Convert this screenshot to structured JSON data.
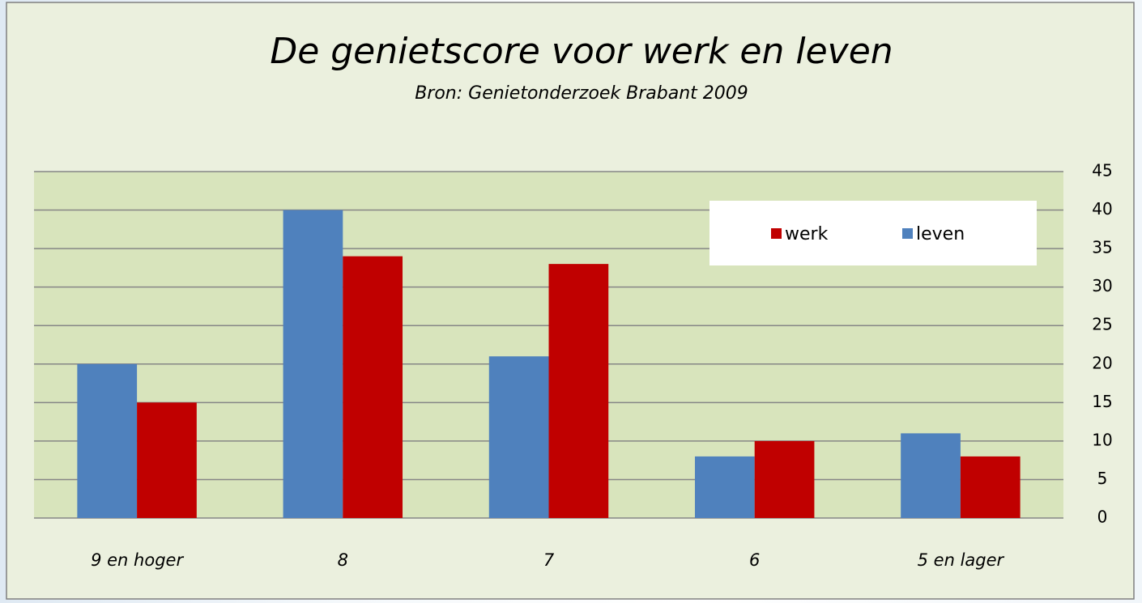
{
  "chart_data": {
    "type": "bar",
    "title": "De genietscore voor werk en leven",
    "subtitle": "Bron: Genietonderzoek Brabant 2009",
    "categories": [
      "9 en hoger",
      "8",
      "7",
      "6",
      "5 en lager"
    ],
    "series": [
      {
        "name": "leven",
        "color": "#4f81bd",
        "values": [
          20,
          40,
          21,
          8,
          11
        ]
      },
      {
        "name": "werk",
        "color": "#c00000",
        "values": [
          15,
          34,
          33,
          10,
          8
        ]
      }
    ],
    "ylim": [
      0,
      45
    ],
    "yticks": [
      0,
      5,
      10,
      15,
      20,
      25,
      30,
      35,
      40,
      45
    ],
    "grid": true,
    "y_axis_side": "right",
    "legend": "top-right"
  }
}
